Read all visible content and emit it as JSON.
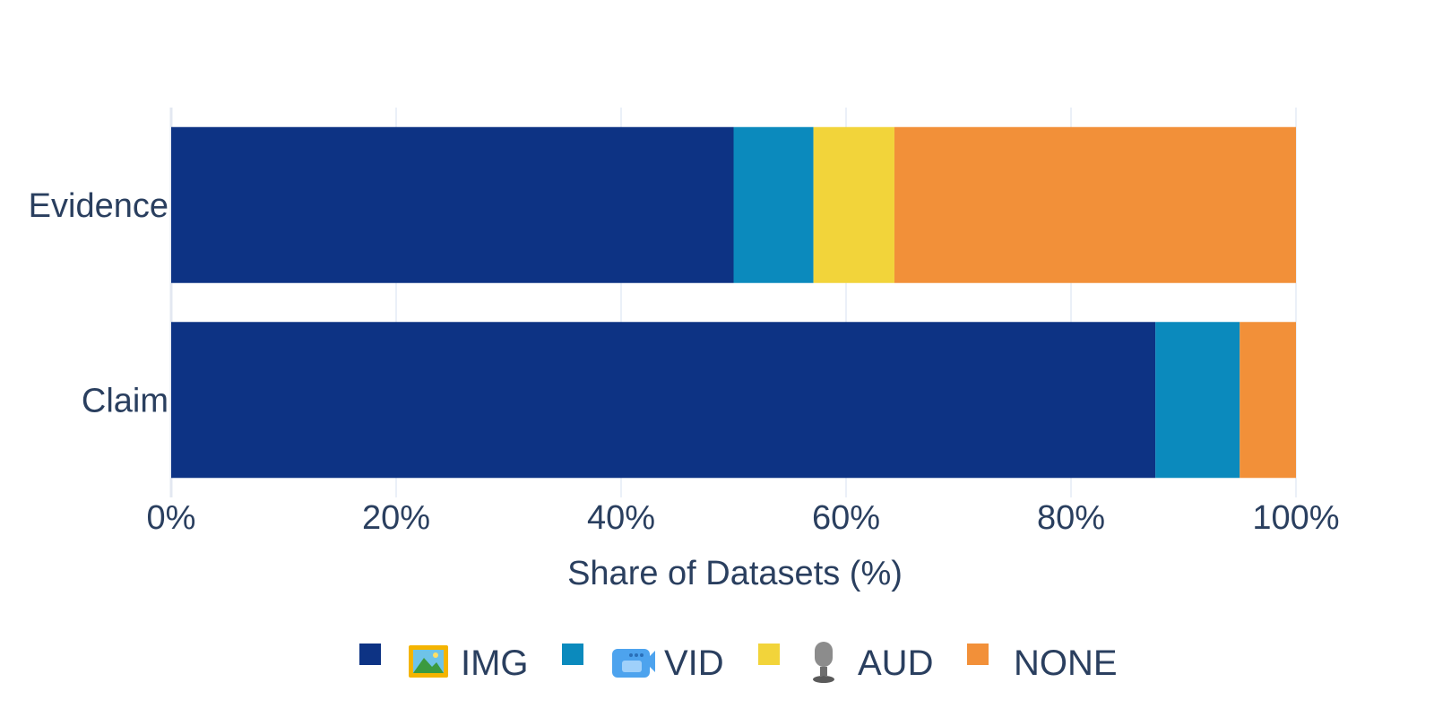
{
  "chart_data": {
    "type": "bar",
    "orientation": "horizontal",
    "stacked": true,
    "categories": [
      "Claim",
      "Evidence"
    ],
    "series": [
      {
        "name": "IMG",
        "icon": "picture-icon",
        "color": "#0d3384",
        "values": [
          87.5,
          50.0
        ]
      },
      {
        "name": "VID",
        "icon": "video-camera-icon",
        "color": "#0b8abd",
        "values": [
          7.5,
          7.1
        ]
      },
      {
        "name": "AUD",
        "icon": "microphone-icon",
        "color": "#f2d43a",
        "values": [
          0,
          7.2
        ]
      },
      {
        "name": "NONE",
        "icon": "",
        "color": "#f29039",
        "values": [
          5.0,
          35.7
        ]
      }
    ],
    "xlabel": "Share of Datasets (%)",
    "ylabel": "",
    "xlim": [
      0,
      100
    ],
    "xticks": [
      0,
      20,
      40,
      60,
      80,
      100
    ],
    "xtick_labels": [
      "0%",
      "20%",
      "40%",
      "60%",
      "80%",
      "100%"
    ],
    "grid": true,
    "legend_position": "bottom"
  }
}
